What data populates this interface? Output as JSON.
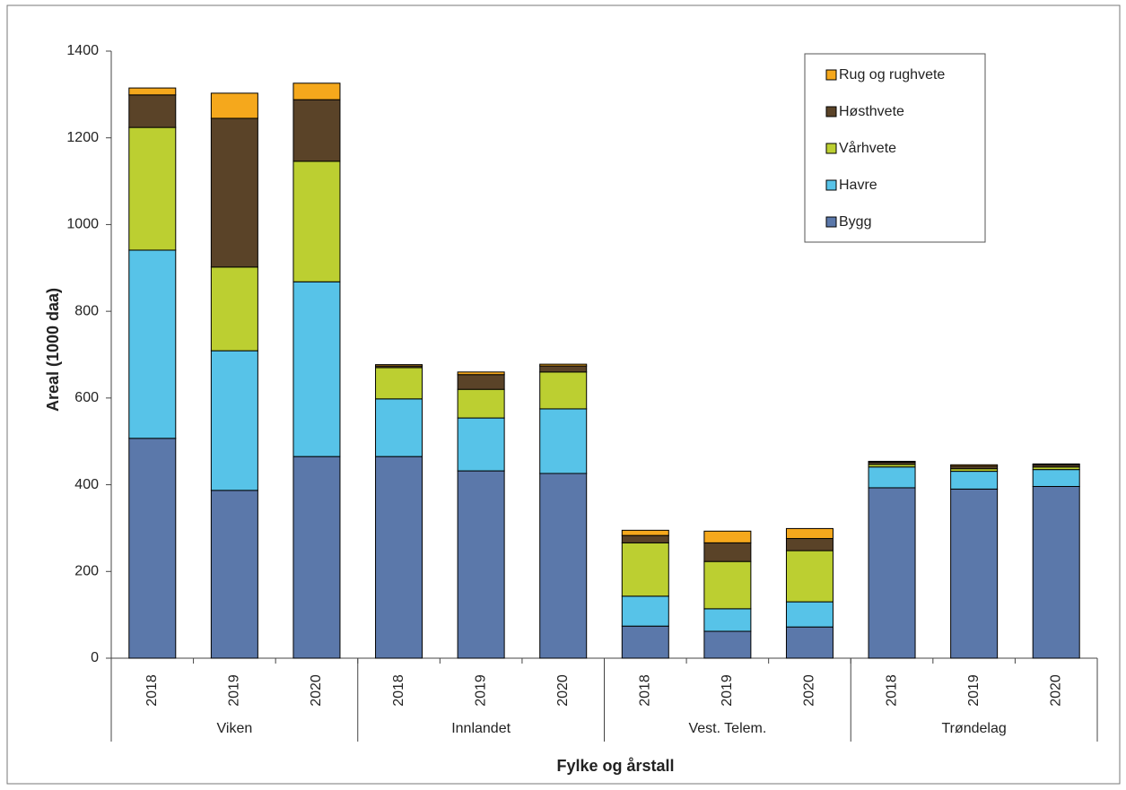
{
  "chart_data": {
    "type": "stacked-bar",
    "y_label": "Areal (1000 daa)",
    "x_label": "Fylke og årstall",
    "categories": [
      "2018",
      "2019",
      "2020",
      "2018",
      "2019",
      "2020",
      "2018",
      "2019",
      "2020",
      "2018",
      "2019",
      "2020"
    ],
    "groups": [
      "Viken",
      "Innlandet",
      "Vest. Telem.",
      "Trøndelag"
    ],
    "ylim": [
      0,
      1400
    ],
    "yticks": [
      0,
      200,
      400,
      600,
      800,
      1000,
      1200,
      1400
    ],
    "series": [
      {
        "name": "Bygg",
        "color": "#5b78aa",
        "values": [
          507,
          387,
          465,
          465,
          432,
          426,
          74,
          62,
          72,
          393,
          390,
          396
        ]
      },
      {
        "name": "Havre",
        "color": "#57c3e8",
        "values": [
          434,
          322,
          403,
          133,
          122,
          149,
          69,
          52,
          58,
          48,
          41,
          39
        ]
      },
      {
        "name": "Vårhvete",
        "color": "#bccf31",
        "values": [
          283,
          193,
          278,
          72,
          66,
          85,
          123,
          109,
          118,
          6,
          6,
          6
        ]
      },
      {
        "name": "Høsthvete",
        "color": "#5a4328",
        "values": [
          75,
          343,
          142,
          4,
          34,
          14,
          17,
          43,
          28,
          5,
          6,
          5
        ]
      },
      {
        "name": "Rug og rughvete",
        "color": "#f5a81c",
        "values": [
          16,
          58,
          38,
          3,
          6,
          4,
          12,
          27,
          23,
          2,
          3,
          2
        ]
      }
    ]
  }
}
